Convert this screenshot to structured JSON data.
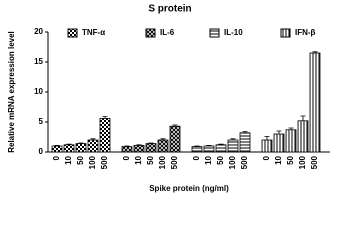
{
  "chart_data": {
    "type": "bar",
    "title": "S protein",
    "y_label": "Relative mRNA expression level",
    "x_label": "Spike protein (ng/ml)",
    "categories": [
      "0",
      "10",
      "50",
      "100",
      "500"
    ],
    "ylim": [
      0,
      20
    ],
    "yticks": [
      0,
      5,
      10,
      15,
      20
    ],
    "series": [
      {
        "name": "TNF-α",
        "color": "#000000",
        "pattern": "checker",
        "values": [
          1.0,
          1.2,
          1.4,
          2.0,
          5.6
        ],
        "errors": [
          0.1,
          0.1,
          0.1,
          0.2,
          0.3
        ]
      },
      {
        "name": "IL-6",
        "color": "#000000",
        "pattern": "cross",
        "values": [
          0.9,
          1.1,
          1.4,
          2.0,
          4.3
        ],
        "errors": [
          0.1,
          0.1,
          0.1,
          0.2,
          0.2
        ]
      },
      {
        "name": "IL-10",
        "color": "#000000",
        "pattern": "horizontal",
        "values": [
          0.9,
          1.0,
          1.2,
          2.0,
          3.2
        ],
        "errors": [
          0.1,
          0.1,
          0.1,
          0.2,
          0.2
        ]
      },
      {
        "name": "IFN-β",
        "color": "#000000",
        "pattern": "vertical",
        "values": [
          2.0,
          3.0,
          3.7,
          5.2,
          16.5
        ],
        "errors": [
          0.6,
          0.5,
          0.3,
          0.8,
          0.2
        ]
      }
    ]
  }
}
